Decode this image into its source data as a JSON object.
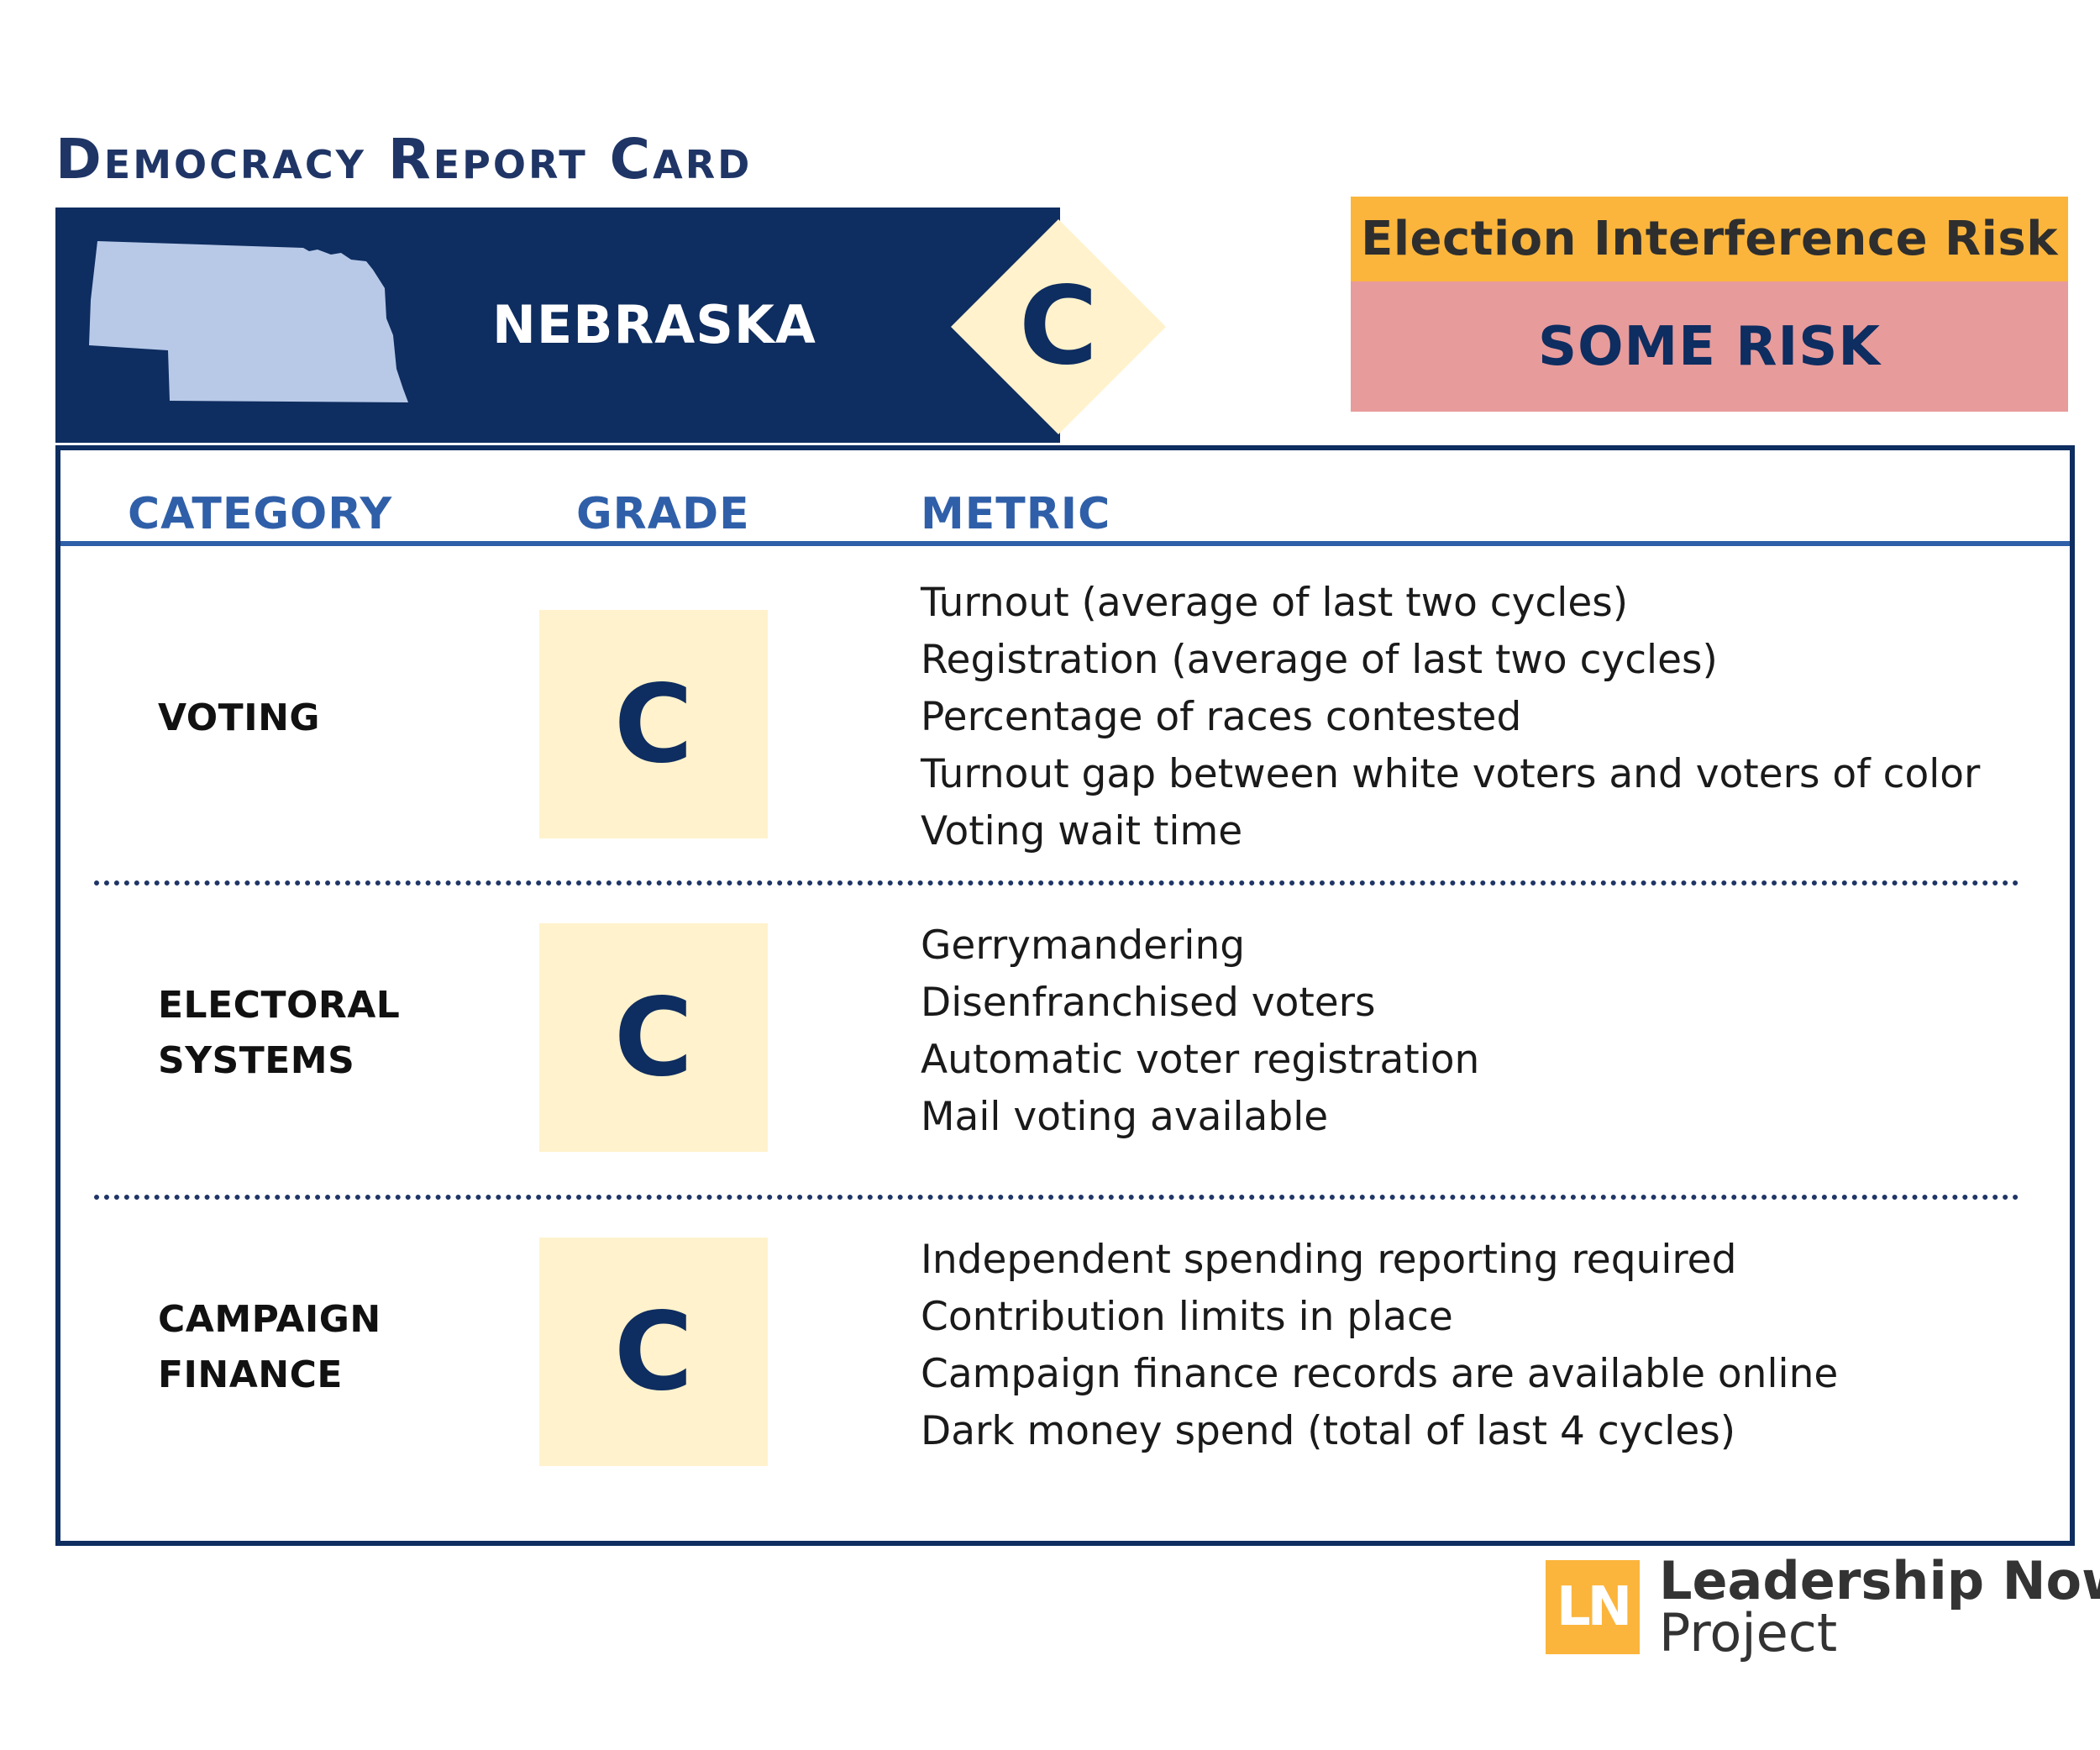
{
  "title": "Democracy Report Card",
  "state": {
    "name": "NEBRASKA",
    "overall_grade": "C"
  },
  "risk": {
    "label": "Election Interference Risk",
    "value": "SOME RISK"
  },
  "table": {
    "headers": {
      "category": "CATEGORY",
      "grade": "GRADE",
      "metric": "METRIC"
    },
    "rows": [
      {
        "category_lines": [
          "VOTING"
        ],
        "grade": "C",
        "metrics": [
          "Turnout (average of last two cycles)",
          "Registration (average of last two cycles)",
          "Percentage of races contested",
          "Turnout gap between white voters and voters of color",
          "Voting wait time"
        ]
      },
      {
        "category_lines": [
          "ELECTORAL",
          "SYSTEMS"
        ],
        "grade": "C",
        "metrics": [
          "Gerrymandering",
          "Disenfranchised voters",
          "Automatic voter registration",
          "Mail voting available"
        ]
      },
      {
        "category_lines": [
          "CAMPAIGN",
          "FINANCE"
        ],
        "grade": "C",
        "metrics": [
          "Independent spending reporting required",
          "Contribution limits in place",
          "Campaign finance records are available online",
          "Dark money spend (total of last 4 cycles)"
        ]
      }
    ]
  },
  "logo": {
    "initials": "LN",
    "line1": "Leadership Now",
    "line2": "Project",
    "color": "#fbb53c"
  },
  "colors": {
    "navy": "#0e2d60",
    "blue": "#2f5fa8",
    "map_fill": "#b8c9e8",
    "grade_bg": "#fff2cc",
    "risk_label_bg": "#fbb53c",
    "risk_value_bg": "#e89b9b"
  }
}
